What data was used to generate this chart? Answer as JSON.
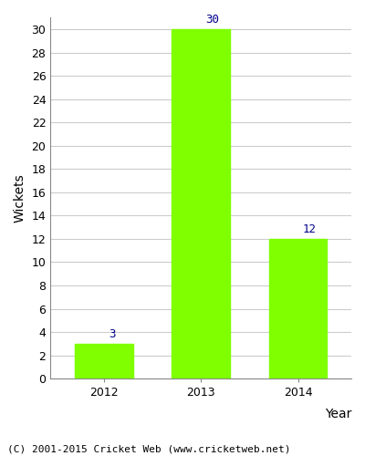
{
  "categories": [
    "2012",
    "2013",
    "2014"
  ],
  "values": [
    3,
    30,
    12
  ],
  "bar_color": "#7fff00",
  "label_color": "#00008b",
  "xlabel": "Year",
  "ylabel": "Wickets",
  "ylim": [
    0,
    31
  ],
  "yticks": [
    0,
    2,
    4,
    6,
    8,
    10,
    12,
    14,
    16,
    18,
    20,
    22,
    24,
    26,
    28,
    30
  ],
  "grid_color": "#cccccc",
  "background_color": "#ffffff",
  "label_fontsize": 9,
  "axis_label_fontsize": 10,
  "tick_fontsize": 9,
  "caption": "(C) 2001-2015 Cricket Web (www.cricketweb.net)",
  "caption_fontsize": 8,
  "bar_width": 0.6
}
